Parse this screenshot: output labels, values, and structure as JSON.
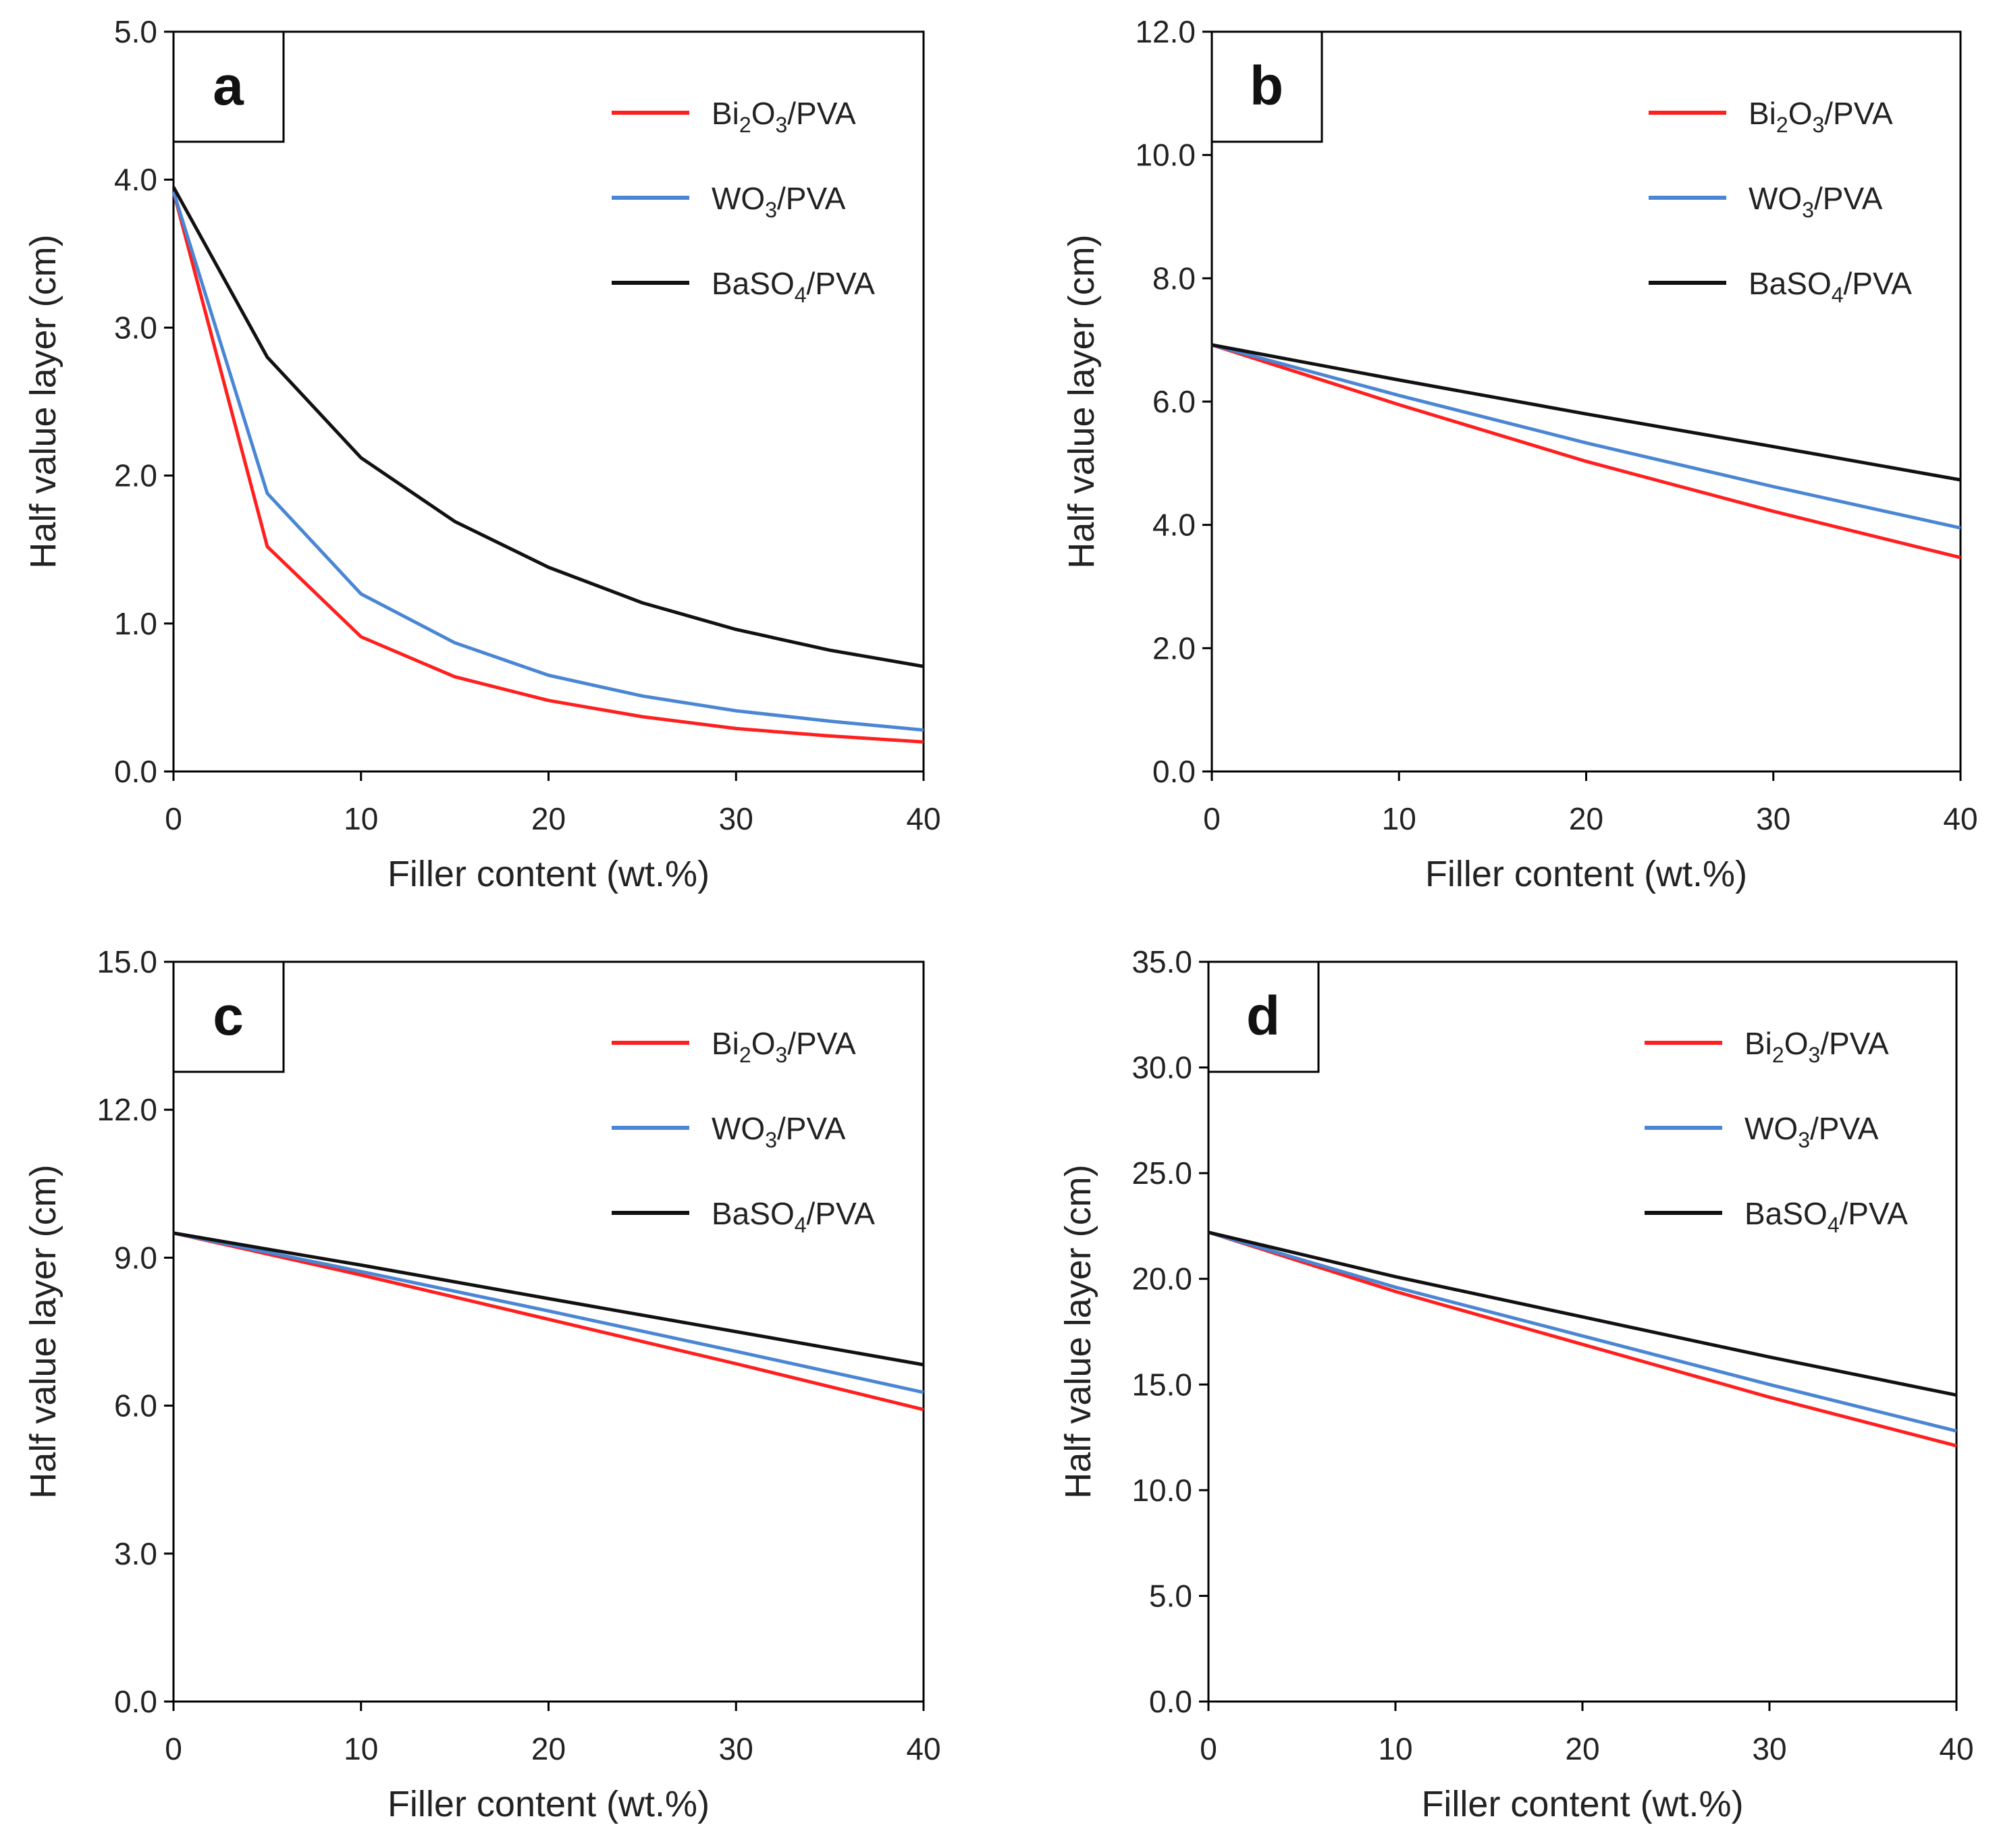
{
  "chart_data": [
    {
      "panel": "a",
      "type": "line",
      "xlabel": "Filler content (wt.%)",
      "ylabel": "Half value layer (cm)",
      "xlim": [
        0,
        40
      ],
      "ylim": [
        0,
        5
      ],
      "xticks": [
        "0",
        "10",
        "20",
        "30",
        "40"
      ],
      "yticks": [
        "0.0",
        "1.0",
        "2.0",
        "3.0",
        "4.0",
        "5.0"
      ],
      "x": [
        0,
        5,
        10,
        15,
        20,
        25,
        30,
        35,
        40
      ],
      "series": [
        {
          "name": "Bi2O3/PVA",
          "label": {
            "base": "Bi",
            "sub1": "2",
            "mid": "O",
            "sub2": "3",
            "tail": "/PVA"
          },
          "color": "#ff1f1f",
          "values": [
            3.92,
            1.52,
            0.91,
            0.64,
            0.48,
            0.37,
            0.29,
            0.24,
            0.2
          ]
        },
        {
          "name": "WO3/PVA",
          "label": {
            "base": "WO",
            "sub1": "3",
            "mid": "",
            "sub2": "",
            "tail": "/PVA"
          },
          "color": "#4a86d4",
          "values": [
            3.92,
            1.88,
            1.2,
            0.87,
            0.65,
            0.51,
            0.41,
            0.34,
            0.28
          ]
        },
        {
          "name": "BaSO4/PVA",
          "label": {
            "base": "BaSO",
            "sub1": "4",
            "mid": "",
            "sub2": "",
            "tail": "/PVA"
          },
          "color": "#111111",
          "values": [
            3.95,
            2.8,
            2.12,
            1.69,
            1.38,
            1.14,
            0.96,
            0.82,
            0.71
          ]
        }
      ]
    },
    {
      "panel": "b",
      "type": "line",
      "xlabel": "Filler content (wt.%)",
      "ylabel": "Half value layer (cm)",
      "xlim": [
        0,
        40
      ],
      "ylim": [
        0,
        12
      ],
      "xticks": [
        "0",
        "10",
        "20",
        "30",
        "40"
      ],
      "yticks": [
        "0.0",
        "2.0",
        "4.0",
        "6.0",
        "8.0",
        "10.0",
        "12.0"
      ],
      "x": [
        0,
        10,
        20,
        30,
        40
      ],
      "series": [
        {
          "name": "Bi2O3/PVA",
          "label": {
            "base": "Bi",
            "sub1": "2",
            "mid": "O",
            "sub2": "3",
            "tail": "/PVA"
          },
          "color": "#ff1f1f",
          "values": [
            6.92,
            5.95,
            5.03,
            4.22,
            3.47
          ]
        },
        {
          "name": "WO3/PVA",
          "label": {
            "base": "WO",
            "sub1": "3",
            "mid": "",
            "sub2": "",
            "tail": "/PVA"
          },
          "color": "#4a86d4",
          "values": [
            6.92,
            6.1,
            5.33,
            4.62,
            3.95
          ]
        },
        {
          "name": "BaSO4/PVA",
          "label": {
            "base": "BaSO",
            "sub1": "4",
            "mid": "",
            "sub2": "",
            "tail": "/PVA"
          },
          "color": "#111111",
          "values": [
            6.92,
            6.35,
            5.8,
            5.27,
            4.73
          ]
        }
      ]
    },
    {
      "panel": "c",
      "type": "line",
      "xlabel": "Filler content (wt.%)",
      "ylabel": "Half value layer (cm)",
      "xlim": [
        0,
        40
      ],
      "ylim": [
        0,
        15
      ],
      "xticks": [
        "0",
        "10",
        "20",
        "30",
        "40"
      ],
      "yticks": [
        "0.0",
        "3.0",
        "6.0",
        "9.0",
        "12.0",
        "15.0"
      ],
      "x": [
        0,
        10,
        20,
        30,
        40
      ],
      "series": [
        {
          "name": "Bi2O3/PVA",
          "label": {
            "base": "Bi",
            "sub1": "2",
            "mid": "O",
            "sub2": "3",
            "tail": "/PVA"
          },
          "color": "#ff1f1f",
          "values": [
            9.5,
            8.65,
            7.75,
            6.85,
            5.92
          ]
        },
        {
          "name": "WO3/PVA",
          "label": {
            "base": "WO",
            "sub1": "3",
            "mid": "",
            "sub2": "",
            "tail": "/PVA"
          },
          "color": "#4a86d4",
          "values": [
            9.5,
            8.72,
            7.92,
            7.1,
            6.27
          ]
        },
        {
          "name": "BaSO4/PVA",
          "label": {
            "base": "BaSO",
            "sub1": "4",
            "mid": "",
            "sub2": "",
            "tail": "/PVA"
          },
          "color": "#111111",
          "values": [
            9.5,
            8.85,
            8.17,
            7.5,
            6.83
          ]
        }
      ]
    },
    {
      "panel": "d",
      "type": "line",
      "xlabel": "Filler content (wt.%)",
      "ylabel": "Half value layer (cm)",
      "xlim": [
        0,
        40
      ],
      "ylim": [
        0,
        35
      ],
      "xticks": [
        "0",
        "10",
        "20",
        "30",
        "40"
      ],
      "yticks": [
        "0.0",
        "5.0",
        "10.0",
        "15.0",
        "20.0",
        "25.0",
        "30.0",
        "35.0"
      ],
      "x": [
        0,
        10,
        20,
        30,
        40
      ],
      "series": [
        {
          "name": "Bi2O3/PVA",
          "label": {
            "base": "Bi",
            "sub1": "2",
            "mid": "O",
            "sub2": "3",
            "tail": "/PVA"
          },
          "color": "#ff1f1f",
          "values": [
            22.2,
            19.4,
            16.9,
            14.4,
            12.1
          ]
        },
        {
          "name": "WO3/PVA",
          "label": {
            "base": "WO",
            "sub1": "3",
            "mid": "",
            "sub2": "",
            "tail": "/PVA"
          },
          "color": "#4a86d4",
          "values": [
            22.2,
            19.6,
            17.3,
            15.0,
            12.8
          ]
        },
        {
          "name": "BaSO4/PVA",
          "label": {
            "base": "BaSO",
            "sub1": "4",
            "mid": "",
            "sub2": "",
            "tail": "/PVA"
          },
          "color": "#111111",
          "values": [
            22.2,
            20.1,
            18.2,
            16.3,
            14.5
          ]
        }
      ]
    }
  ]
}
